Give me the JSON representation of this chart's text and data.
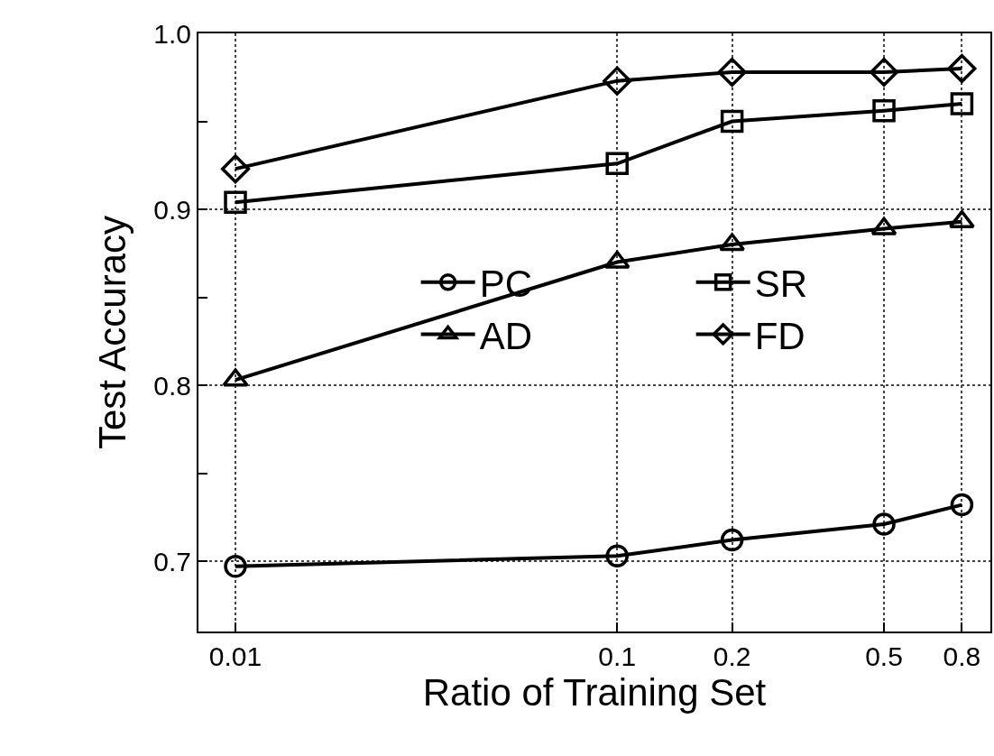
{
  "chart_data": {
    "type": "line",
    "xlabel": "Ratio of Training Set",
    "ylabel": "Test Accuracy",
    "log": "x",
    "x": [
      0.01,
      0.1,
      0.2,
      0.5,
      0.8
    ],
    "xlim": [
      0.008,
      0.95
    ],
    "xticks": [
      0.01,
      0.1,
      0.2,
      0.5,
      0.8
    ],
    "ylim": [
      0.66,
      1.0
    ],
    "yticks": [
      {
        "value": 0.7,
        "label": "0.7"
      },
      {
        "value": 0.75,
        "label": null
      },
      {
        "value": 0.8,
        "label": "0.8"
      },
      {
        "value": 0.85,
        "label": null
      },
      {
        "value": 0.9,
        "label": "0.9"
      },
      {
        "value": 0.95,
        "label": null
      },
      {
        "value": 1.0,
        "label": "1.0"
      }
    ],
    "grid": true,
    "legend": "right",
    "line_style": "solid",
    "series": [
      {
        "name": "PC",
        "color": "#000000",
        "marker": "circle",
        "values": [
          0.697,
          0.703,
          0.712,
          0.721,
          0.732
        ]
      },
      {
        "name": "SR",
        "color": "#000000",
        "marker": "square",
        "values": [
          0.904,
          0.926,
          0.95,
          0.956,
          0.96
        ]
      },
      {
        "name": "AD",
        "color": "#000000",
        "marker": "triangle",
        "values": [
          0.803,
          0.87,
          0.88,
          0.889,
          0.893
        ]
      },
      {
        "name": "FD",
        "color": "#000000",
        "marker": "diamond",
        "values": [
          0.923,
          0.973,
          0.978,
          0.978,
          0.98
        ]
      }
    ]
  }
}
